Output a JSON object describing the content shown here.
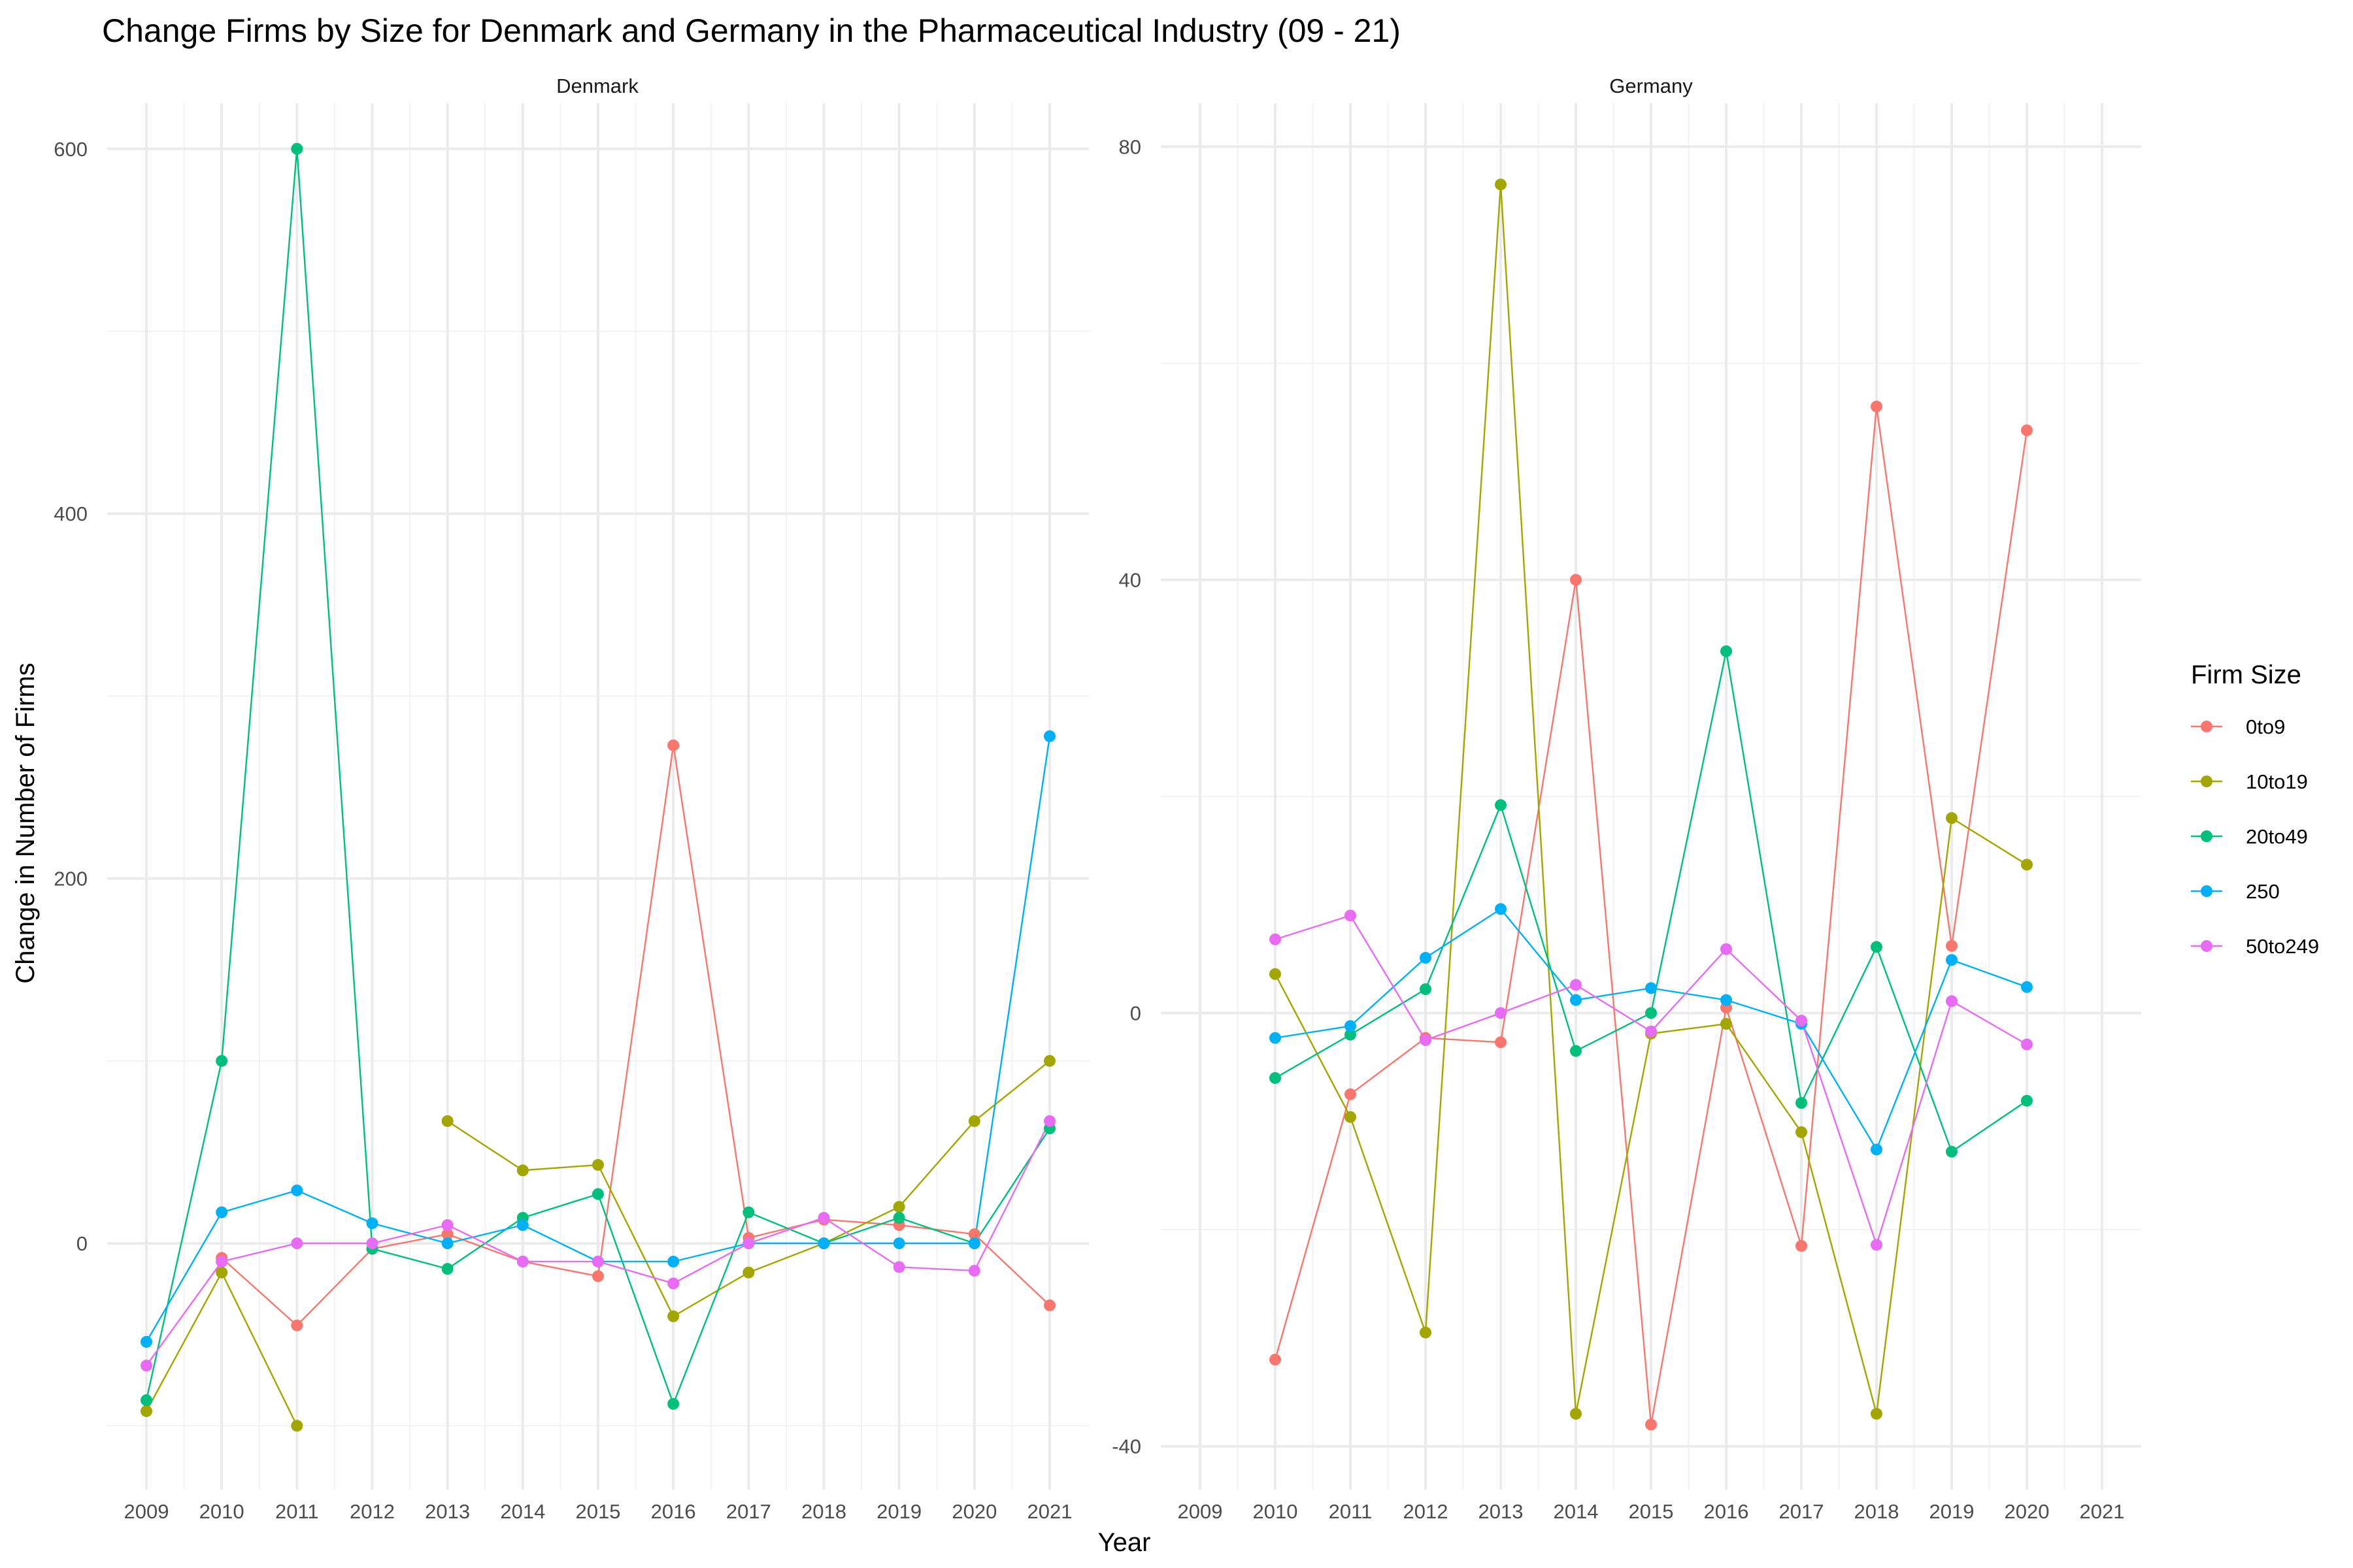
{
  "chart_data": {
    "type": "line",
    "title": "Change Firms by Size for Denmark and Germany in the Pharmaceutical Industry (09 - 21)",
    "xlabel": "Year",
    "ylabel": "Change in Number of Firms",
    "legend_title": "Firm Size",
    "legend_position": "right",
    "grid": true,
    "categories": [
      "2009",
      "2010",
      "2011",
      "2012",
      "2013",
      "2014",
      "2015",
      "2016",
      "2017",
      "2018",
      "2019",
      "2020",
      "2021"
    ],
    "series_colors": {
      "0to9": "#F8766D",
      "10to19": "#A3A500",
      "20to49": "#00BF7D",
      "250": "#00B0F6",
      "50to249": "#E76BF3"
    },
    "panels": [
      {
        "name": "Denmark",
        "ylim": [
          -135,
          625
        ],
        "yticks": [
          0,
          200,
          400,
          600
        ],
        "series": [
          {
            "name": "0to9",
            "values": [
              null,
              -8,
              -45,
              -3,
              5,
              -10,
              -18,
              273,
              3,
              13,
              10,
              5,
              -34
            ]
          },
          {
            "name": "10to19",
            "values": [
              -92,
              -16,
              -100,
              null,
              67,
              40,
              43,
              -40,
              -16,
              0,
              20,
              67,
              100
            ]
          },
          {
            "name": "20to49",
            "values": [
              -86,
              100,
              600,
              -3,
              -14,
              14,
              27,
              -88,
              17,
              0,
              14,
              0,
              63
            ]
          },
          {
            "name": "250",
            "values": [
              -54,
              17,
              29,
              11,
              0,
              10,
              -10,
              -10,
              0,
              0,
              0,
              0,
              278
            ]
          },
          {
            "name": "50to249",
            "values": [
              -67,
              -10,
              0,
              0,
              10,
              -10,
              -10,
              -22,
              0,
              14,
              -13,
              -15,
              67
            ]
          }
        ]
      },
      {
        "name": "Germany",
        "ylim": [
          -44,
          84
        ],
        "yticks": [
          -40,
          0,
          40,
          80
        ],
        "series": [
          {
            "name": "0to9",
            "values": [
              null,
              -32,
              -7.5,
              -2.3,
              -2.7,
              40,
              -38,
              0.5,
              -21.5,
              56,
              6.2,
              53.8,
              null
            ]
          },
          {
            "name": "10to19",
            "values": [
              null,
              3.6,
              -9.6,
              -29.5,
              76.5,
              -37,
              -1.9,
              -1,
              -11,
              -37,
              18,
              13.7,
              null
            ]
          },
          {
            "name": "20to49",
            "values": [
              null,
              -6,
              -2,
              2.2,
              19.2,
              -3.5,
              0,
              33.4,
              -8.3,
              6.1,
              -12.8,
              -8.1,
              null
            ]
          },
          {
            "name": "250",
            "values": [
              null,
              -2.3,
              -1.2,
              5.1,
              9.6,
              1.2,
              2.3,
              1.2,
              -1,
              -12.6,
              4.9,
              2.4,
              null
            ]
          },
          {
            "name": "50to249",
            "values": [
              null,
              6.8,
              9,
              -2.5,
              0,
              2.6,
              -1.7,
              5.9,
              -0.7,
              -21.4,
              1.1,
              -2.9,
              null
            ]
          }
        ]
      }
    ]
  }
}
